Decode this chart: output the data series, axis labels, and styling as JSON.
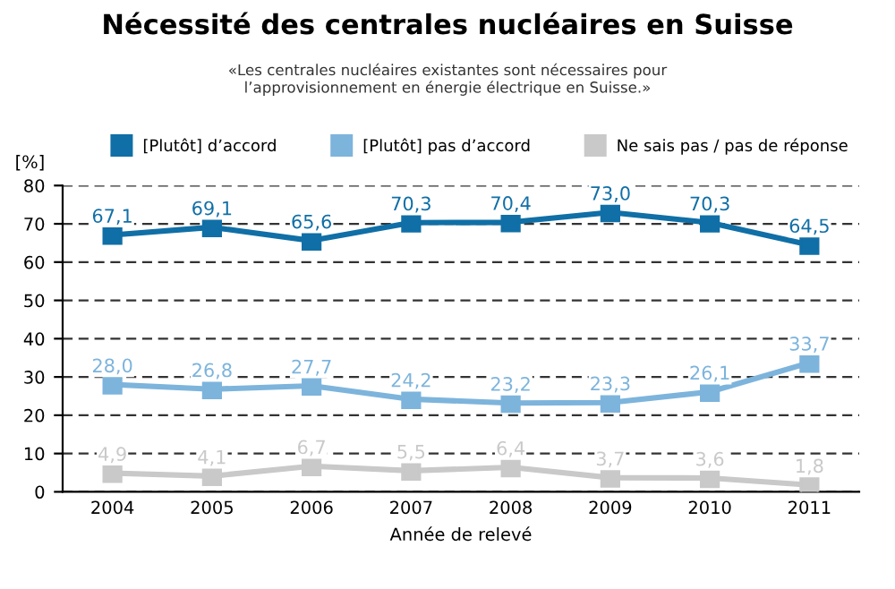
{
  "chart_data": {
    "type": "line",
    "title": "Nécessité des centrales nucléaires en Suisse",
    "subtitle": "«Les centrales nucléaires existantes sont nécessaires pour\nl’approvisionnement en énergie électrique en Suisse.»",
    "xlabel": "Année de relevé",
    "ylabel": "[%]",
    "categories": [
      "2004",
      "2005",
      "2006",
      "2007",
      "2008",
      "2009",
      "2010",
      "2011"
    ],
    "series": [
      {
        "name": "[Plutôt] d’accord",
        "color": "#106fa6",
        "values": [
          67.1,
          69.1,
          65.6,
          70.3,
          70.4,
          73.0,
          70.3,
          64.5
        ],
        "value_labels": [
          "67,1",
          "69,1",
          "65,6",
          "70,3",
          "70,4",
          "73,0",
          "70,3",
          "64,5"
        ]
      },
      {
        "name": "[Plutôt] pas d’accord",
        "color": "#7db4dc",
        "values": [
          28.0,
          26.8,
          27.7,
          24.2,
          23.2,
          23.3,
          26.1,
          33.7
        ],
        "value_labels": [
          "28,0",
          "26,8",
          "27,7",
          "24,2",
          "23,2",
          "23,3",
          "26,1",
          "33,7"
        ]
      },
      {
        "name": "Ne sais pas / pas de réponse",
        "color": "#c9c9c9",
        "values": [
          4.9,
          4.1,
          6.7,
          5.5,
          6.4,
          3.7,
          3.6,
          1.8
        ],
        "value_labels": [
          "4,9",
          "4,1",
          "6,7",
          "5,5",
          "6,4",
          "3,7",
          "3,6",
          "1,8"
        ]
      }
    ],
    "ylim": [
      0,
      80
    ],
    "yticks": [
      0,
      10,
      20,
      30,
      40,
      50,
      60,
      70,
      80
    ],
    "grid": "y",
    "legend": "top",
    "marker": "square",
    "line_style": "solid"
  }
}
